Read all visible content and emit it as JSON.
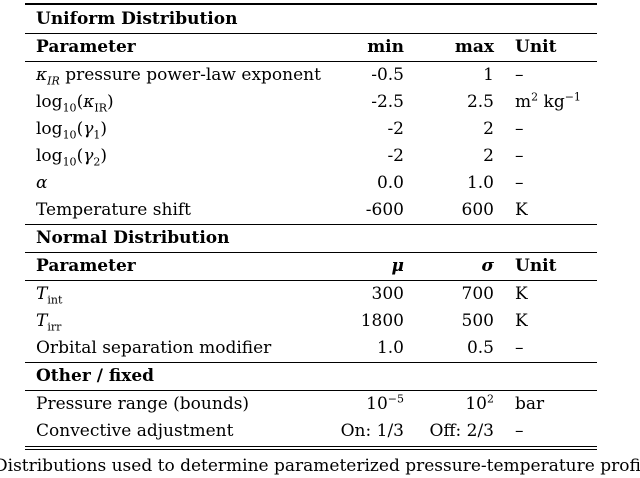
{
  "table": {
    "sections": [
      {
        "title": "Uniform Distribution",
        "headers": [
          "Parameter",
          "min",
          "max",
          "Unit"
        ],
        "rows": [
          {
            "parameter": "κIR pressure power-law exponent",
            "min": "-0.5",
            "max": "1",
            "unit": "–"
          },
          {
            "parameter": "log10(κIR)",
            "min": "-2.5",
            "max": "2.5",
            "unit": "m2 kg−1"
          },
          {
            "parameter": "log10(γ1)",
            "min": "-2",
            "max": "2",
            "unit": "–"
          },
          {
            "parameter": "log10(γ2)",
            "min": "-2",
            "max": "2",
            "unit": "–"
          },
          {
            "parameter": "α",
            "min": "0.0",
            "max": "1.0",
            "unit": "–"
          },
          {
            "parameter": "Temperature shift",
            "min": "-600",
            "max": "600",
            "unit": "K"
          }
        ]
      },
      {
        "title": "Normal Distribution",
        "headers": [
          "Parameter",
          "μ",
          "σ",
          "Unit"
        ],
        "rows": [
          {
            "parameter": "Tint",
            "min": "300",
            "max": "700",
            "unit": "K"
          },
          {
            "parameter": "Tirr",
            "min": "1800",
            "max": "500",
            "unit": "K"
          },
          {
            "parameter": "Orbital separation modifier",
            "min": "1.0",
            "max": "0.5",
            "unit": "–"
          }
        ]
      },
      {
        "title": "Other / fixed",
        "rows": [
          {
            "parameter": "Pressure range (bounds)",
            "min": "10−5",
            "max": "102",
            "unit": "bar"
          },
          {
            "parameter": "Convective adjustment",
            "min": "On: 1/3",
            "max": "Off: 2/3",
            "unit": "–"
          }
        ]
      }
    ],
    "caption": "Distributions used to determine parameterized pressure-temperature profiles."
  }
}
